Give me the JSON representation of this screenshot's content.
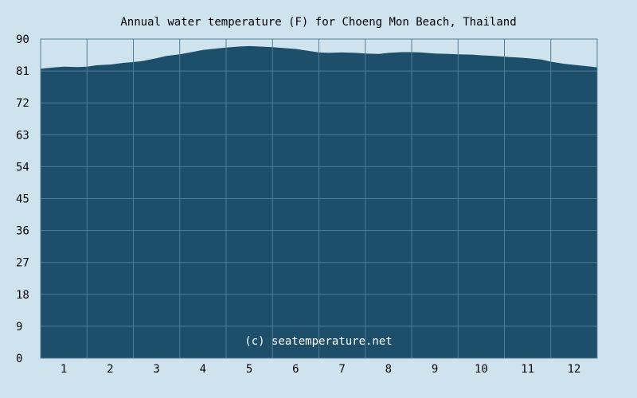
{
  "colors": {
    "background": "#cfe3ee",
    "plot_fill": "#1d4f6b",
    "grid": "#4f7d98",
    "frame": "#5a7f96",
    "text": "#000000",
    "watermark": "#ffffff"
  },
  "watermark": "(c) seatemperature.net",
  "chart_data": {
    "type": "area",
    "title": "Annual water temperature (F) for Choeng Mon Beach, Thailand",
    "xlabel": "",
    "ylabel": "",
    "x_ticks": [
      "1",
      "2",
      "3",
      "4",
      "5",
      "6",
      "7",
      "8",
      "9",
      "10",
      "11",
      "12"
    ],
    "y_ticks": [
      "0",
      "9",
      "18",
      "27",
      "36",
      "45",
      "54",
      "63",
      "72",
      "81",
      "90"
    ],
    "ylim": [
      0,
      90
    ],
    "xlim": [
      0.5,
      12.5
    ],
    "grid": true,
    "legend": "none",
    "series": [
      {
        "x": [
          0.5,
          0.8,
          1.0,
          1.3,
          1.5,
          1.7,
          2.0,
          2.3,
          2.5,
          2.7,
          3.0,
          3.2,
          3.5,
          3.8,
          4.0,
          4.2,
          4.5,
          4.8,
          5.0,
          5.2,
          5.5,
          5.8,
          6.0,
          6.3,
          6.5,
          6.7,
          7.0,
          7.3,
          7.5,
          7.8,
          8.0,
          8.3,
          8.5,
          8.7,
          9.0,
          9.3,
          9.5,
          9.8,
          10.0,
          10.3,
          10.5,
          10.8,
          11.0,
          11.3,
          11.5,
          11.8,
          12.0,
          12.3,
          12.5
        ],
        "values": [
          81.6,
          82.0,
          82.2,
          82.1,
          82.2,
          82.6,
          82.8,
          83.3,
          83.5,
          83.8,
          84.6,
          85.2,
          85.7,
          86.4,
          86.9,
          87.2,
          87.6,
          87.9,
          88.0,
          87.9,
          87.7,
          87.4,
          87.2,
          86.6,
          86.2,
          86.1,
          86.2,
          86.1,
          85.9,
          85.8,
          86.1,
          86.3,
          86.3,
          86.2,
          85.9,
          85.8,
          85.7,
          85.6,
          85.4,
          85.2,
          85.0,
          84.8,
          84.6,
          84.2,
          83.6,
          83.0,
          82.7,
          82.3,
          82.0
        ]
      }
    ]
  }
}
